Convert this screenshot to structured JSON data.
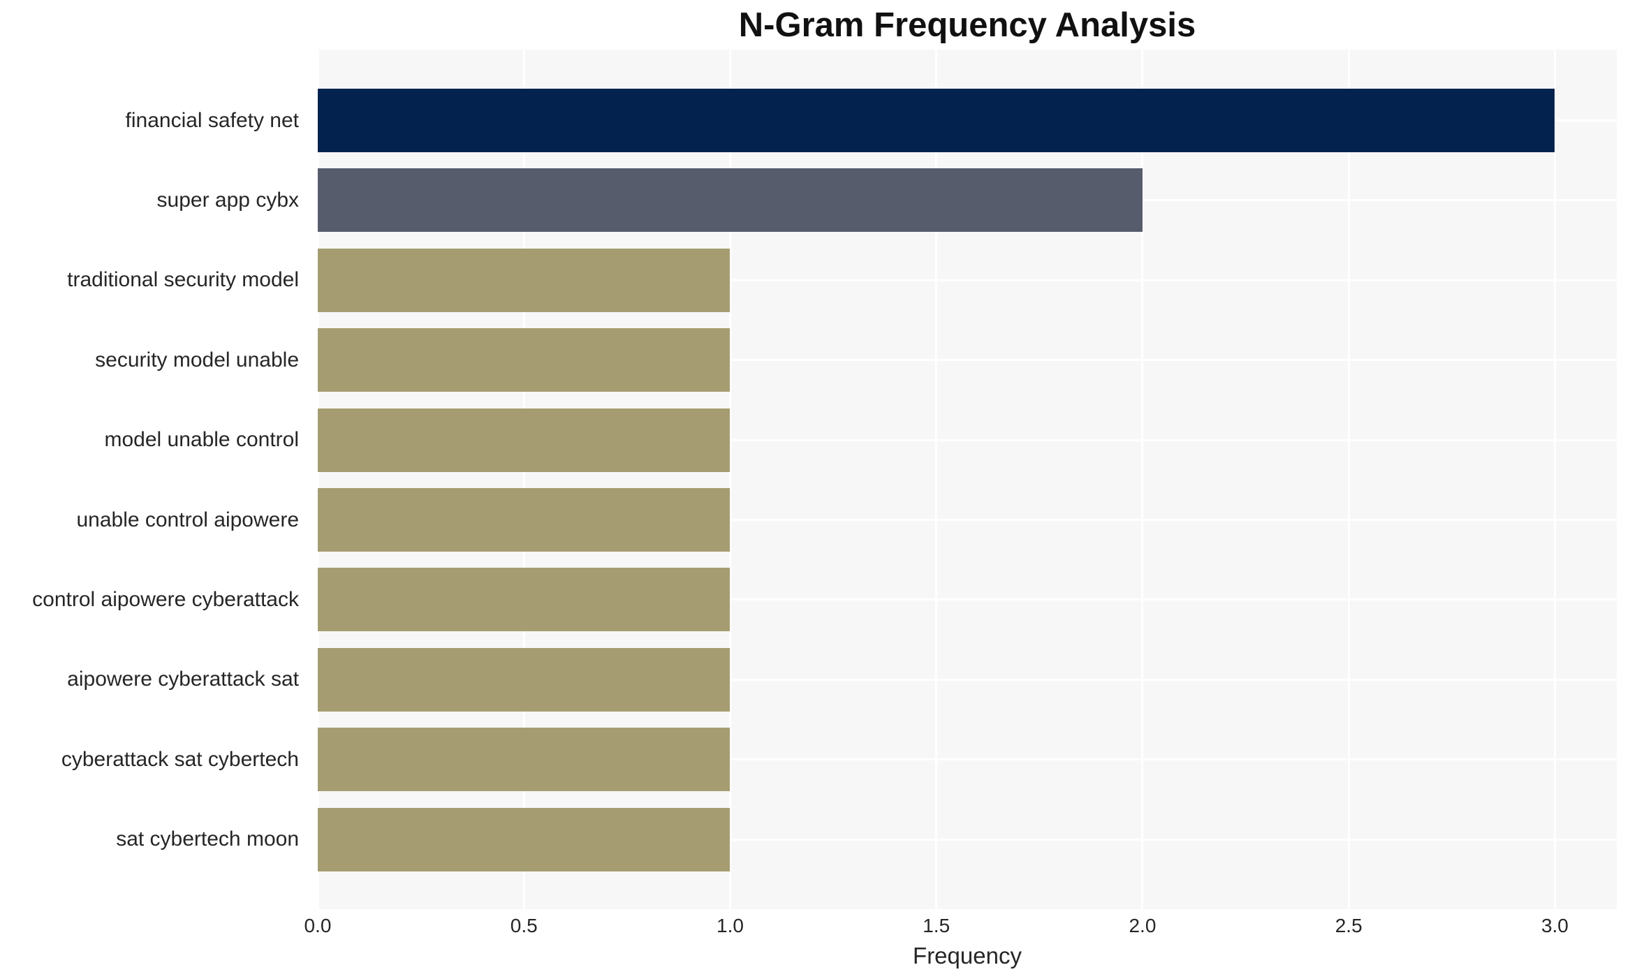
{
  "chart_data": {
    "type": "bar",
    "orientation": "horizontal",
    "title": "N-Gram Frequency Analysis",
    "xlabel": "Frequency",
    "ylabel": "",
    "categories": [
      "financial safety net",
      "super app cybx",
      "traditional security model",
      "security model unable",
      "model unable control",
      "unable control aipowere",
      "control aipowere cyberattack",
      "aipowere cyberattack sat",
      "cyberattack sat cybertech",
      "sat cybertech moon"
    ],
    "values": [
      3,
      2,
      1,
      1,
      1,
      1,
      1,
      1,
      1,
      1
    ],
    "bar_colors": [
      "#03234e",
      "#575c6c",
      "#a59d71",
      "#a59d71",
      "#a59d71",
      "#a59d71",
      "#a59d71",
      "#a59d71",
      "#a59d71",
      "#a59d71"
    ],
    "xlim": [
      0,
      3.15
    ],
    "xticks": [
      0.0,
      0.5,
      1.0,
      1.5,
      2.0,
      2.5,
      3.0
    ],
    "xtick_labels": [
      "0.0",
      "0.5",
      "1.0",
      "1.5",
      "2.0",
      "2.5",
      "3.0"
    ],
    "grid": true,
    "legend": false,
    "colors": {
      "plot_background": "#f7f7f7",
      "figure_background": "#ffffff",
      "gridline": "#ffffff",
      "text": "#262626",
      "title_text": "#111111"
    }
  }
}
